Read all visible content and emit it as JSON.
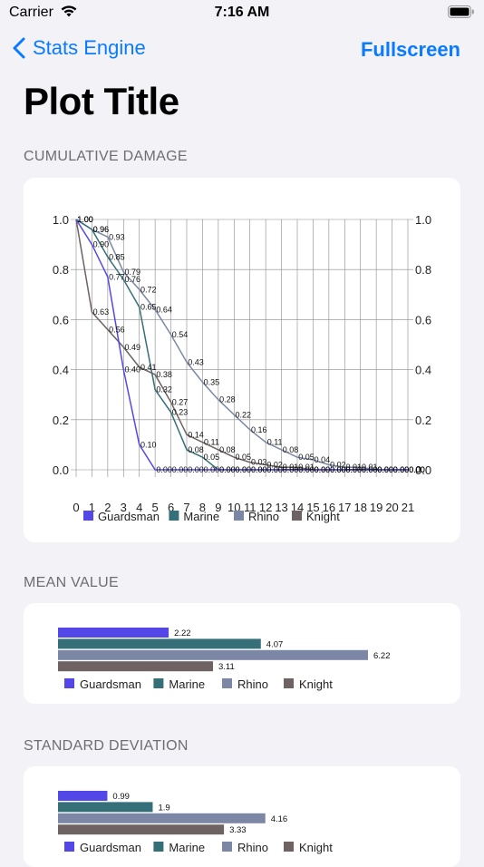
{
  "status_bar": {
    "carrier": "Carrier",
    "time": "7:16 AM"
  },
  "nav": {
    "back_label": "Stats Engine",
    "fullscreen_label": "Fullscreen"
  },
  "page": {
    "title": "Plot Title"
  },
  "sections": {
    "cumulative": "CUMULATIVE DAMAGE",
    "mean": "MEAN VALUE",
    "stddev": "STANDARD DEVIATION"
  },
  "colors": {
    "Guardsman": "#5447e8",
    "Marine": "#356f78",
    "Rhino": "#7c87a6",
    "Knight": "#6e6262",
    "accent": "#0a7aff"
  },
  "chart_data": [
    {
      "type": "line",
      "x": [
        0,
        1,
        2,
        3,
        4,
        5,
        6,
        7,
        8,
        9,
        10,
        11,
        12,
        13,
        14,
        15,
        16,
        17,
        18,
        19,
        20,
        21
      ],
      "xlim": [
        0,
        21
      ],
      "ylim": [
        0,
        1
      ],
      "y_ticks": [
        "0.0",
        "0.2",
        "0.4",
        "0.6",
        "0.8",
        "1.0"
      ],
      "grid": true,
      "dual_y_axis": true,
      "legend_position": "bottom",
      "series": [
        {
          "name": "Guardsman",
          "values": [
            1.0,
            0.9,
            0.77,
            0.4,
            0.1,
            0.0,
            0.0,
            0.0,
            0.0,
            0.0,
            0.0,
            0.0,
            0.0,
            0.0,
            0.0,
            0.0,
            0.0,
            0.0,
            0.0,
            0.0,
            0.0,
            0.0
          ],
          "labels": [
            "1.00",
            "0.90",
            "0.77",
            "0.40",
            "0.10",
            "0.00",
            "0.00",
            "0.00",
            "0.00",
            "0.00",
            "0.00",
            "0.00",
            "0.00",
            "0.00",
            "0.00",
            "0.00",
            "0.00",
            "0.00",
            "0.00",
            "0.00",
            "0.00",
            "0.00"
          ]
        },
        {
          "name": "Marine",
          "values": [
            1.0,
            0.96,
            0.85,
            0.76,
            0.65,
            0.32,
            0.23,
            0.08,
            0.05,
            0.0,
            0.0,
            0.0,
            0.0,
            0.0,
            0.0,
            0.0,
            0.0,
            0.0,
            0.0,
            0.0,
            0.0,
            0.0
          ],
          "labels": [
            "1.00",
            "0.96",
            "0.85",
            "0.76",
            "0.65",
            "0.32",
            "0.23",
            "0.08",
            "0.05",
            "0.00",
            "0.00",
            "0.00",
            "0.00",
            "0.00",
            "0.00",
            "0.00",
            "0.00",
            "0.00",
            "0.00",
            "0.00",
            "0.00",
            "0.00"
          ]
        },
        {
          "name": "Rhino",
          "values": [
            1.0,
            0.96,
            0.93,
            0.79,
            0.72,
            0.64,
            0.54,
            0.43,
            0.35,
            0.28,
            0.22,
            0.16,
            0.11,
            0.08,
            0.05,
            0.04,
            0.02,
            0.01,
            0.01,
            0.0,
            0.0,
            0.0
          ],
          "labels": [
            "1.00",
            "0.96",
            "0.93",
            "0.79",
            "0.72",
            "0.64",
            "0.54",
            "0.43",
            "0.35",
            "0.28",
            "0.22",
            "0.16",
            "0.11",
            "0.08",
            "0.05",
            "0.04",
            "0.02",
            "0.01",
            "0.01",
            "0.00",
            "0.00",
            "0.00"
          ]
        },
        {
          "name": "Knight",
          "values": [
            1.0,
            0.63,
            0.56,
            0.49,
            0.41,
            0.38,
            0.27,
            0.14,
            0.11,
            0.08,
            0.05,
            0.03,
            0.02,
            0.01,
            0.01,
            0.0,
            0.0,
            0.0,
            0.0,
            0.0,
            0.0,
            0.0
          ],
          "labels": [
            "1.00",
            "0.63",
            "0.56",
            "0.49",
            "0.41",
            "0.38",
            "0.27",
            "0.14",
            "0.11",
            "0.08",
            "0.05",
            "0.03",
            "0.02",
            "0.01",
            "0.01",
            "0.00",
            "0.00",
            "0.00",
            "0.00",
            "0.00",
            "0.00",
            "0.00"
          ]
        }
      ]
    },
    {
      "type": "bar",
      "orientation": "horizontal",
      "legend_position": "bottom",
      "series": [
        {
          "name": "Guardsman",
          "value": 2.22,
          "label": "2.22"
        },
        {
          "name": "Marine",
          "value": 4.07,
          "label": "4.07"
        },
        {
          "name": "Rhino",
          "value": 6.22,
          "label": "6.22"
        },
        {
          "name": "Knight",
          "value": 3.11,
          "label": "3.11"
        }
      ]
    },
    {
      "type": "bar",
      "orientation": "horizontal",
      "legend_position": "bottom",
      "series": [
        {
          "name": "Guardsman",
          "value": 0.99,
          "label": "0.99"
        },
        {
          "name": "Marine",
          "value": 1.9,
          "label": "1.9"
        },
        {
          "name": "Rhino",
          "value": 4.16,
          "label": "4.16"
        },
        {
          "name": "Knight",
          "value": 3.33,
          "label": "3.33"
        }
      ]
    }
  ]
}
